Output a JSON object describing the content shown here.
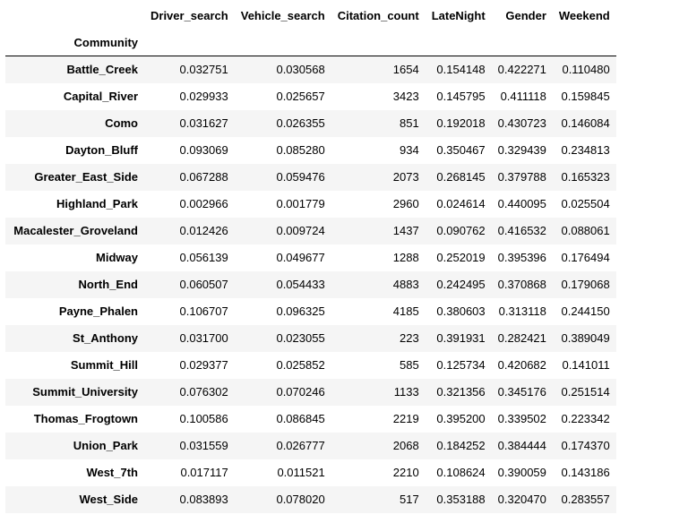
{
  "table": {
    "columns": [
      "Driver_search",
      "Vehicle_search",
      "Citation_count",
      "LateNight",
      "Gender",
      "Weekend"
    ],
    "index_name": "Community",
    "rows": [
      {
        "name": "Battle_Creek",
        "values": [
          "0.032751",
          "0.030568",
          "1654",
          "0.154148",
          "0.422271",
          "0.110480"
        ]
      },
      {
        "name": "Capital_River",
        "values": [
          "0.029933",
          "0.025657",
          "3423",
          "0.145795",
          "0.411118",
          "0.159845"
        ]
      },
      {
        "name": "Como",
        "values": [
          "0.031627",
          "0.026355",
          "851",
          "0.192018",
          "0.430723",
          "0.146084"
        ]
      },
      {
        "name": "Dayton_Bluff",
        "values": [
          "0.093069",
          "0.085280",
          "934",
          "0.350467",
          "0.329439",
          "0.234813"
        ]
      },
      {
        "name": "Greater_East_Side",
        "values": [
          "0.067288",
          "0.059476",
          "2073",
          "0.268145",
          "0.379788",
          "0.165323"
        ]
      },
      {
        "name": "Highland_Park",
        "values": [
          "0.002966",
          "0.001779",
          "2960",
          "0.024614",
          "0.440095",
          "0.025504"
        ]
      },
      {
        "name": "Macalester_Groveland",
        "values": [
          "0.012426",
          "0.009724",
          "1437",
          "0.090762",
          "0.416532",
          "0.088061"
        ]
      },
      {
        "name": "Midway",
        "values": [
          "0.056139",
          "0.049677",
          "1288",
          "0.252019",
          "0.395396",
          "0.176494"
        ]
      },
      {
        "name": "North_End",
        "values": [
          "0.060507",
          "0.054433",
          "4883",
          "0.242495",
          "0.370868",
          "0.179068"
        ]
      },
      {
        "name": "Payne_Phalen",
        "values": [
          "0.106707",
          "0.096325",
          "4185",
          "0.380603",
          "0.313118",
          "0.244150"
        ]
      },
      {
        "name": "St_Anthony",
        "values": [
          "0.031700",
          "0.023055",
          "223",
          "0.391931",
          "0.282421",
          "0.389049"
        ]
      },
      {
        "name": "Summit_Hill",
        "values": [
          "0.029377",
          "0.025852",
          "585",
          "0.125734",
          "0.420682",
          "0.141011"
        ]
      },
      {
        "name": "Summit_University",
        "values": [
          "0.076302",
          "0.070246",
          "1133",
          "0.321356",
          "0.345176",
          "0.251514"
        ]
      },
      {
        "name": "Thomas_Frogtown",
        "values": [
          "0.100586",
          "0.086845",
          "2219",
          "0.395200",
          "0.339502",
          "0.223342"
        ]
      },
      {
        "name": "Union_Park",
        "values": [
          "0.031559",
          "0.026777",
          "2068",
          "0.184252",
          "0.384444",
          "0.174370"
        ]
      },
      {
        "name": "West_7th",
        "values": [
          "0.017117",
          "0.011521",
          "2210",
          "0.108624",
          "0.390059",
          "0.143186"
        ]
      },
      {
        "name": "West_Side",
        "values": [
          "0.083893",
          "0.078020",
          "517",
          "0.353188",
          "0.320470",
          "0.283557"
        ]
      }
    ]
  }
}
